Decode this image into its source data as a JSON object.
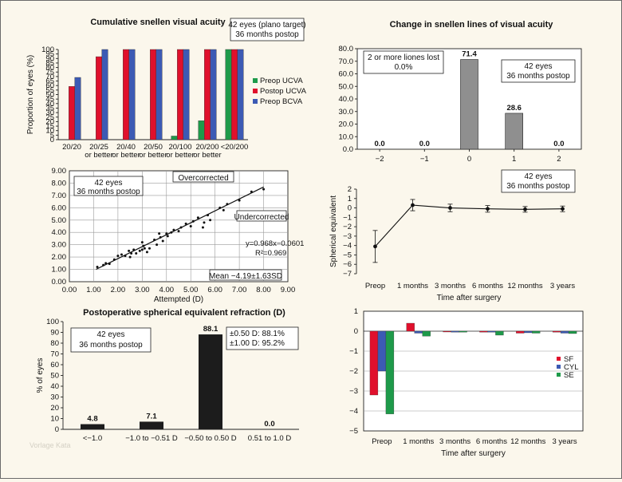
{
  "watermark": "Vorlage Kata",
  "chart_data": [
    {
      "id": "acuity",
      "type": "bar",
      "title": "Cumulative snellen visual acuity",
      "annotation": [
        "42 eyes (plano target)",
        "36 months postop"
      ],
      "ylabel": "Proportion of eyes (%)",
      "ylim": [
        0,
        100
      ],
      "yticks": [
        0,
        5,
        10,
        15,
        20,
        25,
        30,
        35,
        40,
        45,
        50,
        55,
        60,
        65,
        70,
        75,
        80,
        85,
        90,
        95,
        100
      ],
      "categories": [
        [
          "20/20"
        ],
        [
          "20/25",
          "or better"
        ],
        [
          "20/40",
          "or better"
        ],
        [
          "20/50",
          "or better"
        ],
        [
          "20/100",
          "or better"
        ],
        [
          "20/200",
          "or better"
        ],
        [
          "<20/200"
        ]
      ],
      "series": [
        {
          "name": "Preop UCVA",
          "color": "#1e9a4a",
          "values": [
            0,
            0,
            0,
            0,
            4,
            21,
            100
          ]
        },
        {
          "name": "Postop UCVA",
          "color": "#e0102c",
          "values": [
            59,
            92,
            100,
            100,
            100,
            100,
            100
          ]
        },
        {
          "name": "Preop BCVA",
          "color": "#3c5ab4",
          "values": [
            69,
            100,
            100,
            100,
            100,
            100,
            100
          ]
        }
      ],
      "legend": "right"
    },
    {
      "id": "lines",
      "type": "bar",
      "title": "Change in snellen lines of visual acuity",
      "annotations": [
        [
          "2 or more liones lost",
          "0.0%"
        ],
        [
          "42 eyes",
          "36 months postop"
        ]
      ],
      "ylim": [
        0,
        80
      ],
      "yticks": [
        "0.0",
        "10.0",
        "20.0",
        "30.0",
        "40.0",
        "50.0",
        "60.0",
        "70.0",
        "80.0"
      ],
      "categories": [
        "−2",
        "−1",
        "0",
        "1",
        "2"
      ],
      "values": [
        0.0,
        0.0,
        71.4,
        28.6,
        0.0
      ],
      "value_labels": [
        "0.0",
        "0.0",
        "71.4",
        "28.6",
        "0.0"
      ],
      "color": "#8f8f8f"
    },
    {
      "id": "scatter",
      "type": "scatter",
      "annotations": [
        [
          "42 eyes",
          "36 months postop"
        ],
        [
          "Overcorrected"
        ],
        [
          "Undercorrected"
        ],
        [
          "Mean −4.19±1.63SD"
        ]
      ],
      "equation": "y=0.968x−0.0601",
      "r2": "R²=0.969",
      "xlabel": "Attempted (D)",
      "xlim": [
        0,
        9
      ],
      "ylim": [
        0,
        9
      ],
      "xticks": [
        "0.00",
        "1.00",
        "2.00",
        "3.00",
        "4.00",
        "5.00",
        "6.00",
        "7.00",
        "8.00",
        "9.00"
      ],
      "yticks": [
        "0.00",
        "1.00",
        "2.00",
        "3.00",
        "4.00",
        "5.00",
        "6.00",
        "7.00",
        "8.00",
        "9.00"
      ],
      "fit": {
        "slope": 0.968,
        "intercept": -0.0601,
        "x_range": [
          1.1,
          8.0
        ]
      },
      "points": [
        [
          1.15,
          1.2
        ],
        [
          1.4,
          1.35
        ],
        [
          1.5,
          1.5
        ],
        [
          1.65,
          1.45
        ],
        [
          1.85,
          1.8
        ],
        [
          2.0,
          2.1
        ],
        [
          2.15,
          2.2
        ],
        [
          2.3,
          2.1
        ],
        [
          2.45,
          2.5
        ],
        [
          2.5,
          2.0
        ],
        [
          2.55,
          2.3
        ],
        [
          2.65,
          2.6
        ],
        [
          2.75,
          2.3
        ],
        [
          2.9,
          2.5
        ],
        [
          3.0,
          2.6
        ],
        [
          3.0,
          3.2
        ],
        [
          3.05,
          2.9
        ],
        [
          3.1,
          2.7
        ],
        [
          3.2,
          2.4
        ],
        [
          3.3,
          2.7
        ],
        [
          3.5,
          3.4
        ],
        [
          3.6,
          3.0
        ],
        [
          3.7,
          3.9
        ],
        [
          3.75,
          3.6
        ],
        [
          3.85,
          3.3
        ],
        [
          4.0,
          3.9
        ],
        [
          4.05,
          3.7
        ],
        [
          4.2,
          4.0
        ],
        [
          4.3,
          4.2
        ],
        [
          4.5,
          4.1
        ],
        [
          4.6,
          4.4
        ],
        [
          4.8,
          4.7
        ],
        [
          5.0,
          4.5
        ],
        [
          5.1,
          4.9
        ],
        [
          5.3,
          5.2
        ],
        [
          5.5,
          4.4
        ],
        [
          5.55,
          4.8
        ],
        [
          5.7,
          5.4
        ],
        [
          5.8,
          5.0
        ],
        [
          6.2,
          6.0
        ],
        [
          6.35,
          5.8
        ],
        [
          6.5,
          6.3
        ],
        [
          7.0,
          6.6
        ],
        [
          7.5,
          7.3
        ],
        [
          8.0,
          7.5
        ]
      ]
    },
    {
      "id": "se",
      "type": "line",
      "annotation": [
        "42 eyes",
        "36 months postop"
      ],
      "ylabel": "Spherical equivalent",
      "xlabel": "Time after surgery",
      "ylim": [
        -7,
        2
      ],
      "yticks": [
        "2",
        "1",
        "0",
        "−1",
        "−2",
        "−3",
        "−4",
        "−5",
        "−6",
        "−7"
      ],
      "categories": [
        "Preop",
        "1 months",
        "3 months",
        "6 months",
        "12 months",
        "3 years"
      ],
      "values": [
        -4.1,
        0.3,
        0.0,
        -0.1,
        -0.15,
        -0.1
      ],
      "errors": [
        1.7,
        0.6,
        0.4,
        0.35,
        0.3,
        0.3
      ]
    },
    {
      "id": "postop",
      "type": "bar",
      "title": "Postoperative spherical equivalent refraction (D)",
      "annotation": [
        "42 eyes",
        "36 months postop"
      ],
      "accuracy": [
        "±0.50 D: 88.1%",
        "±1.00 D: 95.2%"
      ],
      "ylabel": "% of eyes",
      "ylim": [
        0,
        100
      ],
      "yticks": [
        "0",
        "10",
        "20",
        "30",
        "40",
        "50",
        "60",
        "70",
        "80",
        "90",
        "100"
      ],
      "categories": [
        "<−1.0",
        "−1.0 to −0.51 D",
        "−0.50 to 0.50 D",
        "0.51 to 1.0 D"
      ],
      "values": [
        4.8,
        7.1,
        88.1,
        0.0
      ],
      "value_labels": [
        "4.8",
        "7.1",
        "88.1",
        "0.0"
      ],
      "color": "#1c1c1c"
    },
    {
      "id": "change",
      "type": "bar",
      "xlabel": "Time after surgery",
      "ylim": [
        -5,
        1
      ],
      "yticks": [
        "1",
        "0",
        "−1",
        "−2",
        "−3",
        "−4",
        "−5"
      ],
      "categories": [
        "Preop",
        "1 months",
        "3 months",
        "6 months",
        "12 months",
        "3 years"
      ],
      "series": [
        {
          "name": "SF",
          "color": "#e0102c",
          "values": [
            -3.2,
            0.4,
            -0.02,
            -0.05,
            -0.1,
            -0.05
          ]
        },
        {
          "name": "CYL",
          "color": "#3c5ab4",
          "values": [
            -2.0,
            -0.1,
            -0.05,
            -0.05,
            -0.08,
            -0.1
          ]
        },
        {
          "name": "SE",
          "color": "#1e9a4a",
          "values": [
            -4.15,
            -0.25,
            -0.05,
            -0.2,
            -0.1,
            -0.12
          ]
        }
      ],
      "legend": "right"
    }
  ]
}
